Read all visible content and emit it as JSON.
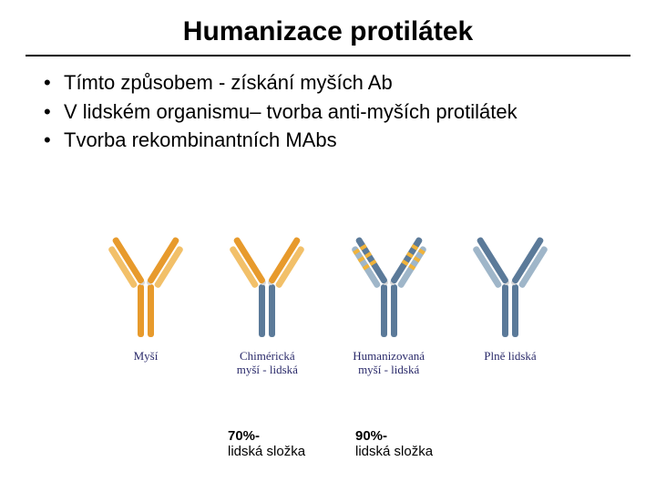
{
  "title": "Humanizace protilátek",
  "bullets": [
    "Tímto způsobem - získání myších Ab",
    "V lidském organismu– tvorba anti-myších protilátek",
    "Tvorba rekombinantních MAbs"
  ],
  "antibodies": [
    {
      "label": "Myší",
      "heavy": "#e79a2c",
      "light": "#f2c069",
      "fab_heavy": "#e79a2c",
      "fab_light": "#f2c069",
      "cdr": null
    },
    {
      "label": "Chimérická\nmyší - lidská",
      "heavy": "#5b7a99",
      "light": "#9fb6c9",
      "fab_heavy": "#e79a2c",
      "fab_light": "#f2c069",
      "cdr": null
    },
    {
      "label": "Humanizovaná\nmyší - lidská",
      "heavy": "#5b7a99",
      "light": "#9fb6c9",
      "fab_heavy": "#5b7a99",
      "fab_light": "#9fb6c9",
      "cdr": "#f0b33a"
    },
    {
      "label": "Plně lidská",
      "heavy": "#5b7a99",
      "light": "#9fb6c9",
      "fab_heavy": "#5b7a99",
      "fab_light": "#9fb6c9",
      "cdr": null
    }
  ],
  "annotations": {
    "col1": {
      "percent": "70%-",
      "text": "lidská složka"
    },
    "col2": {
      "percent": "90%-",
      "text": "lidská složka"
    }
  },
  "style": {
    "bg": "#ffffff",
    "rule_color": "#000000",
    "label_color": "#2a2a6a",
    "hinge_color": "#d8d8d8"
  }
}
